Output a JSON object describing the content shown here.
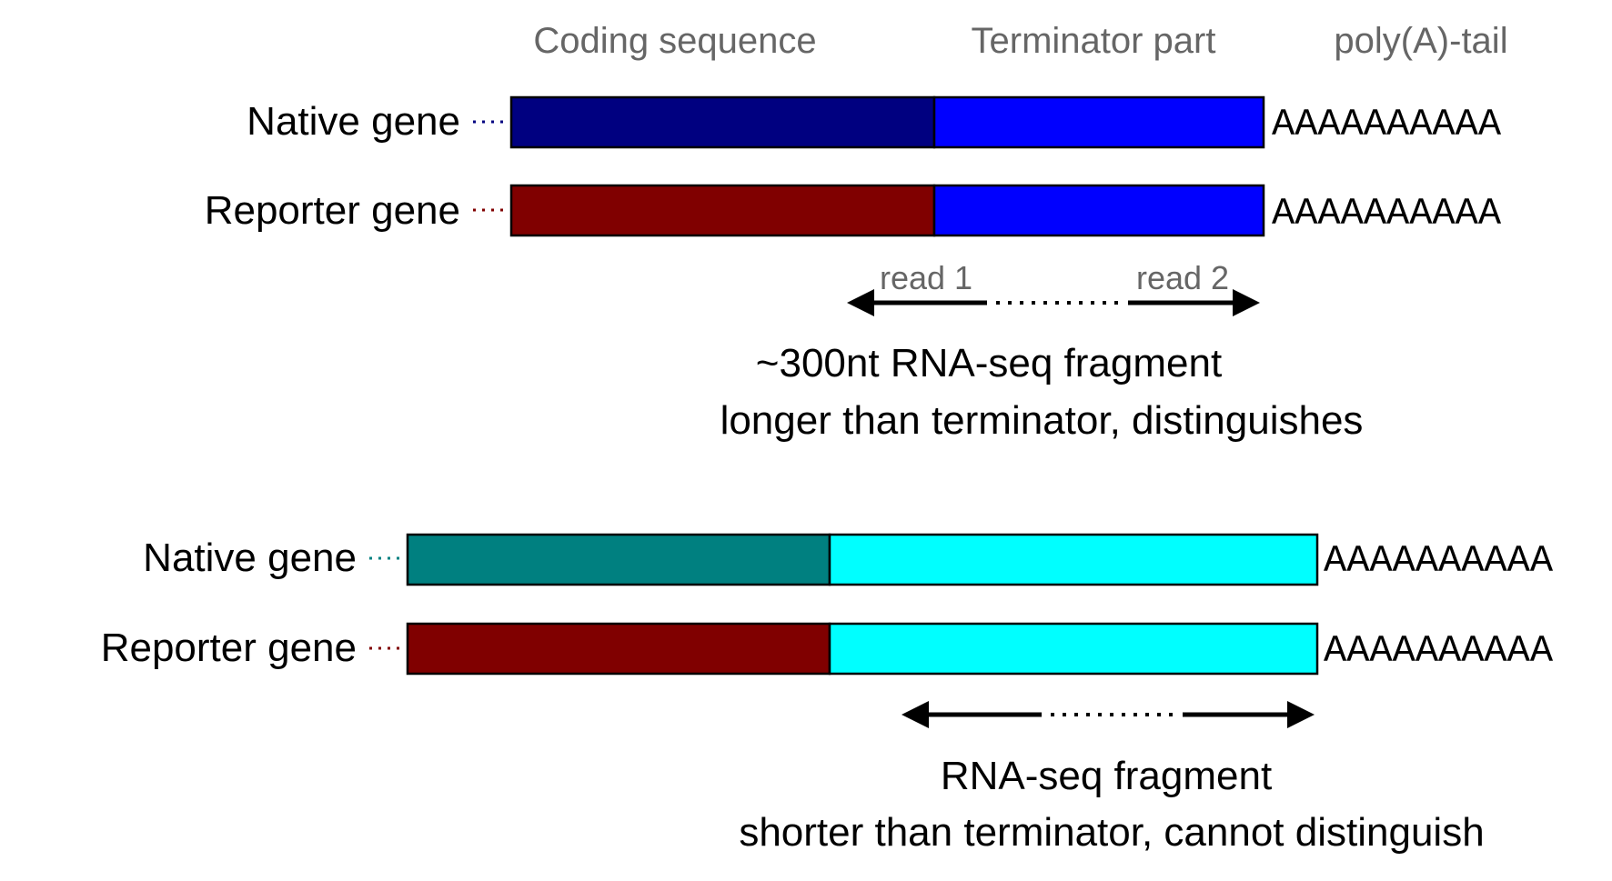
{
  "headers": {
    "coding": "Coding sequence",
    "terminator": "Terminator part",
    "polya": "poly(A)-tail"
  },
  "panel_top": {
    "native_label": "Native gene",
    "reporter_label": "Reporter gene",
    "native_polya": "AAAAAAAAAA",
    "reporter_polya": "AAAAAAAAAA",
    "read1": "read 1",
    "read2": "read 2",
    "caption_line1": "~300nt RNA-seq fragment",
    "caption_line2": "longer than terminator, distinguishes",
    "colors": {
      "native_coding": "#000080",
      "reporter_coding": "#800000",
      "terminator": "#0000ff",
      "native_dots": "#000080",
      "reporter_dots": "#800000"
    }
  },
  "panel_bottom": {
    "native_label": "Native gene",
    "reporter_label": "Reporter gene",
    "native_polya": "AAAAAAAAAA",
    "reporter_polya": "AAAAAAAAAA",
    "caption_line1": "RNA-seq fragment",
    "caption_line2": "shorter than terminator, cannot distinguish",
    "colors": {
      "native_coding": "#008080",
      "reporter_coding": "#800000",
      "terminator": "#00ffff",
      "native_dots": "#008080",
      "reporter_dots": "#800000"
    }
  }
}
